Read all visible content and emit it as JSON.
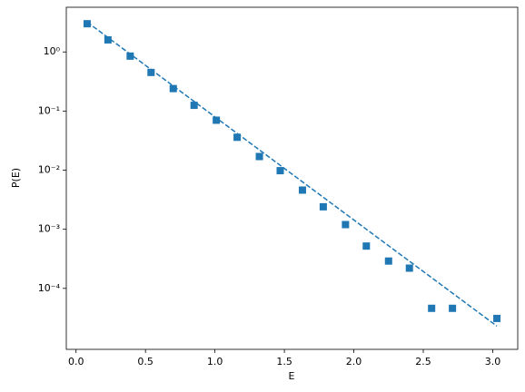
{
  "chart_data": {
    "type": "scatter",
    "xlabel": "E",
    "ylabel": "P(E)",
    "log_y": true,
    "xlim": [
      -0.07,
      3.18
    ],
    "ylim": [
      9.3e-06,
      5.7
    ],
    "xticks": [
      {
        "value": 0,
        "label": "0.0"
      },
      {
        "value": 0.5,
        "label": "0.5"
      },
      {
        "value": 1,
        "label": "1.0"
      },
      {
        "value": 1.5,
        "label": "1.5"
      },
      {
        "value": 2,
        "label": "2.0"
      },
      {
        "value": 2.5,
        "label": "2.5"
      },
      {
        "value": 3,
        "label": "3.0"
      }
    ],
    "yticks": [
      {
        "value": 1,
        "label": "10⁰"
      },
      {
        "value": 0.1,
        "label": "10⁻¹"
      },
      {
        "value": 0.01,
        "label": "10⁻²"
      },
      {
        "value": 0.001,
        "label": "10⁻³"
      },
      {
        "value": 0.0001,
        "label": "10⁻⁴"
      }
    ],
    "series": [
      {
        "type": "scatter",
        "color": "#1f77b4",
        "x": [
          0.08,
          0.23,
          0.39,
          0.54,
          0.7,
          0.85,
          1.01,
          1.16,
          1.32,
          1.47,
          1.63,
          1.78,
          1.94,
          2.09,
          2.25,
          2.4,
          2.56,
          2.71,
          3.03
        ],
        "values": [
          3.0,
          1.6,
          0.85,
          0.45,
          0.24,
          0.125,
          0.07,
          0.036,
          0.017,
          0.0098,
          0.0046,
          0.0024,
          0.0012,
          0.00052,
          0.00029,
          0.00022,
          4.6e-05,
          4.6e-05,
          3.1e-05
        ]
      },
      {
        "type": "line",
        "color": "#1f77b4",
        "dashed": true,
        "x": [
          0.08,
          3.03
        ],
        "values": [
          3.2,
          2.3e-05
        ]
      }
    ]
  }
}
